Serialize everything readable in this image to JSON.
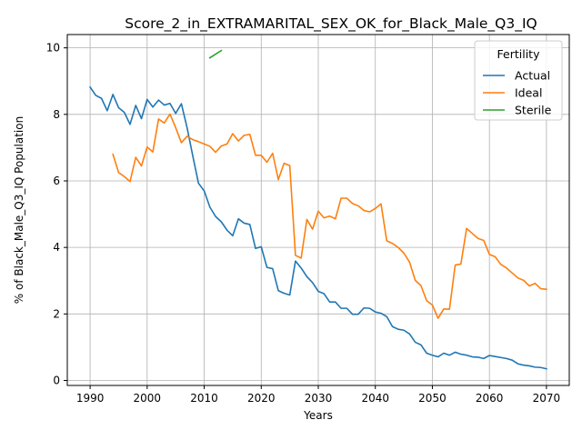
{
  "chart_data": {
    "type": "line",
    "title": "Score_2_in_EXTRAMARITAL_SEX_OK_for_Black_Male_Q3_IQ",
    "xlabel": "Years",
    "ylabel": "% of Black_Male_Q3_IQ Population",
    "xlim": [
      1986,
      2074
    ],
    "ylim": [
      -0.15,
      10.4
    ],
    "xticks": [
      1990,
      2000,
      2010,
      2020,
      2030,
      2040,
      2050,
      2060,
      2070
    ],
    "yticks": [
      0,
      2,
      4,
      6,
      8,
      10
    ],
    "grid": true,
    "legend": {
      "title": "Fertility",
      "placement": "top-right"
    },
    "series": [
      {
        "name": "Actual",
        "color": "#1f77b4",
        "points": [
          [
            1990,
            8.82
          ],
          [
            1991,
            8.57
          ],
          [
            1992,
            8.48
          ],
          [
            1993,
            8.11
          ],
          [
            1994,
            8.6
          ],
          [
            1995,
            8.2
          ],
          [
            1996,
            8.06
          ],
          [
            1997,
            7.7
          ],
          [
            1998,
            8.27
          ],
          [
            1999,
            7.87
          ],
          [
            2000,
            8.45
          ],
          [
            2001,
            8.22
          ],
          [
            2002,
            8.43
          ],
          [
            2003,
            8.28
          ],
          [
            2004,
            8.33
          ],
          [
            2005,
            8.03
          ],
          [
            2006,
            8.32
          ],
          [
            2007,
            7.6
          ],
          [
            2008,
            6.75
          ],
          [
            2009,
            5.93
          ],
          [
            2010,
            5.7
          ],
          [
            2011,
            5.21
          ],
          [
            2012,
            4.93
          ],
          [
            2013,
            4.77
          ],
          [
            2014,
            4.52
          ],
          [
            2015,
            4.35
          ],
          [
            2016,
            4.86
          ],
          [
            2017,
            4.73
          ],
          [
            2018,
            4.69
          ],
          [
            2019,
            3.97
          ],
          [
            2020,
            4.02
          ],
          [
            2021,
            3.4
          ],
          [
            2022,
            3.36
          ],
          [
            2023,
            2.7
          ],
          [
            2024,
            2.62
          ],
          [
            2025,
            2.57
          ],
          [
            2026,
            3.59
          ],
          [
            2027,
            3.38
          ],
          [
            2028,
            3.12
          ],
          [
            2029,
            2.94
          ],
          [
            2030,
            2.68
          ],
          [
            2031,
            2.61
          ],
          [
            2032,
            2.36
          ],
          [
            2033,
            2.36
          ],
          [
            2034,
            2.17
          ],
          [
            2035,
            2.17
          ],
          [
            2036,
            1.99
          ],
          [
            2037,
            1.99
          ],
          [
            2038,
            2.18
          ],
          [
            2039,
            2.17
          ],
          [
            2040,
            2.06
          ],
          [
            2041,
            2.02
          ],
          [
            2042,
            1.92
          ],
          [
            2043,
            1.62
          ],
          [
            2044,
            1.54
          ],
          [
            2045,
            1.51
          ],
          [
            2046,
            1.4
          ],
          [
            2047,
            1.15
          ],
          [
            2048,
            1.07
          ],
          [
            2049,
            0.82
          ],
          [
            2050,
            0.76
          ],
          [
            2051,
            0.71
          ],
          [
            2052,
            0.82
          ],
          [
            2053,
            0.76
          ],
          [
            2054,
            0.85
          ],
          [
            2055,
            0.79
          ],
          [
            2056,
            0.76
          ],
          [
            2057,
            0.71
          ],
          [
            2058,
            0.7
          ],
          [
            2059,
            0.66
          ],
          [
            2060,
            0.75
          ],
          [
            2061,
            0.72
          ],
          [
            2062,
            0.69
          ],
          [
            2063,
            0.66
          ],
          [
            2064,
            0.61
          ],
          [
            2065,
            0.5
          ],
          [
            2066,
            0.46
          ],
          [
            2067,
            0.44
          ],
          [
            2068,
            0.4
          ],
          [
            2069,
            0.39
          ],
          [
            2070,
            0.35
          ]
        ]
      },
      {
        "name": "Ideal",
        "color": "#ff7f0e",
        "points": [
          [
            1994,
            6.8
          ],
          [
            1995,
            6.25
          ],
          [
            1996,
            6.13
          ],
          [
            1997,
            5.98
          ],
          [
            1998,
            6.71
          ],
          [
            1999,
            6.45
          ],
          [
            2000,
            7.02
          ],
          [
            2001,
            6.87
          ],
          [
            2002,
            7.86
          ],
          [
            2003,
            7.74
          ],
          [
            2004,
            8.01
          ],
          [
            2005,
            7.6
          ],
          [
            2006,
            7.15
          ],
          [
            2007,
            7.34
          ],
          [
            2008,
            7.24
          ],
          [
            2009,
            7.18
          ],
          [
            2010,
            7.11
          ],
          [
            2011,
            7.04
          ],
          [
            2012,
            6.86
          ],
          [
            2013,
            7.05
          ],
          [
            2014,
            7.11
          ],
          [
            2015,
            7.42
          ],
          [
            2016,
            7.2
          ],
          [
            2017,
            7.37
          ],
          [
            2018,
            7.4
          ],
          [
            2019,
            6.77
          ],
          [
            2020,
            6.77
          ],
          [
            2021,
            6.56
          ],
          [
            2022,
            6.83
          ],
          [
            2023,
            6.04
          ],
          [
            2024,
            6.53
          ],
          [
            2025,
            6.46
          ],
          [
            2026,
            3.76
          ],
          [
            2027,
            3.68
          ],
          [
            2028,
            4.84
          ],
          [
            2029,
            4.55
          ],
          [
            2030,
            5.09
          ],
          [
            2031,
            4.89
          ],
          [
            2032,
            4.94
          ],
          [
            2033,
            4.86
          ],
          [
            2034,
            5.48
          ],
          [
            2035,
            5.48
          ],
          [
            2036,
            5.32
          ],
          [
            2037,
            5.25
          ],
          [
            2038,
            5.11
          ],
          [
            2039,
            5.07
          ],
          [
            2040,
            5.17
          ],
          [
            2041,
            5.31
          ],
          [
            2042,
            4.2
          ],
          [
            2043,
            4.12
          ],
          [
            2044,
            4.0
          ],
          [
            2045,
            3.83
          ],
          [
            2046,
            3.56
          ],
          [
            2047,
            3.01
          ],
          [
            2048,
            2.85
          ],
          [
            2049,
            2.4
          ],
          [
            2050,
            2.27
          ],
          [
            2051,
            1.87
          ],
          [
            2052,
            2.15
          ],
          [
            2053,
            2.14
          ],
          [
            2054,
            3.47
          ],
          [
            2055,
            3.5
          ],
          [
            2056,
            4.57
          ],
          [
            2057,
            4.42
          ],
          [
            2058,
            4.27
          ],
          [
            2059,
            4.21
          ],
          [
            2060,
            3.79
          ],
          [
            2061,
            3.72
          ],
          [
            2062,
            3.49
          ],
          [
            2063,
            3.38
          ],
          [
            2064,
            3.23
          ],
          [
            2065,
            3.08
          ],
          [
            2066,
            3.01
          ],
          [
            2067,
            2.84
          ],
          [
            2068,
            2.92
          ],
          [
            2069,
            2.76
          ],
          [
            2070,
            2.74
          ]
        ]
      },
      {
        "name": "Sterile",
        "color": "#2ca02c",
        "points": [
          [
            2011,
            9.7
          ],
          [
            2013,
            9.92
          ]
        ]
      }
    ]
  }
}
